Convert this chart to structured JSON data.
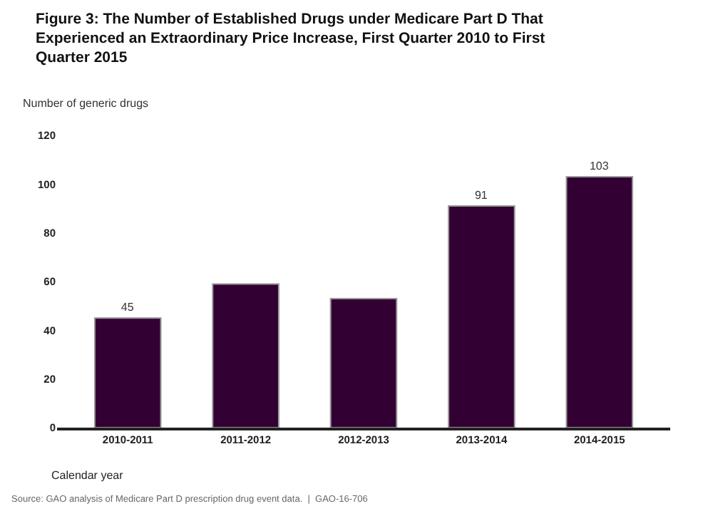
{
  "chart_data": {
    "type": "bar",
    "title": "Figure 3: The Number of Established Drugs under Medicare Part D That Experienced an Extraordinary Price Increase, First Quarter 2010 to First Quarter 2015",
    "ylabel": "Number of generic drugs",
    "xlabel": "Calendar year",
    "categories": [
      "2010-2011",
      "2011-2012",
      "2012-2013",
      "2013-2014",
      "2014-2015"
    ],
    "values": [
      45,
      59,
      53,
      91,
      103
    ],
    "value_labels": [
      "45",
      null,
      null,
      "91",
      "103"
    ],
    "color": "#330033",
    "ylim": [
      0,
      120
    ],
    "yticks": [
      0,
      20,
      40,
      60,
      80,
      100,
      120
    ],
    "grid": false,
    "annotations": [
      "Source: GAO analysis of Medicare Part D prescription drug event data.  |  GAO-16-706"
    ]
  }
}
